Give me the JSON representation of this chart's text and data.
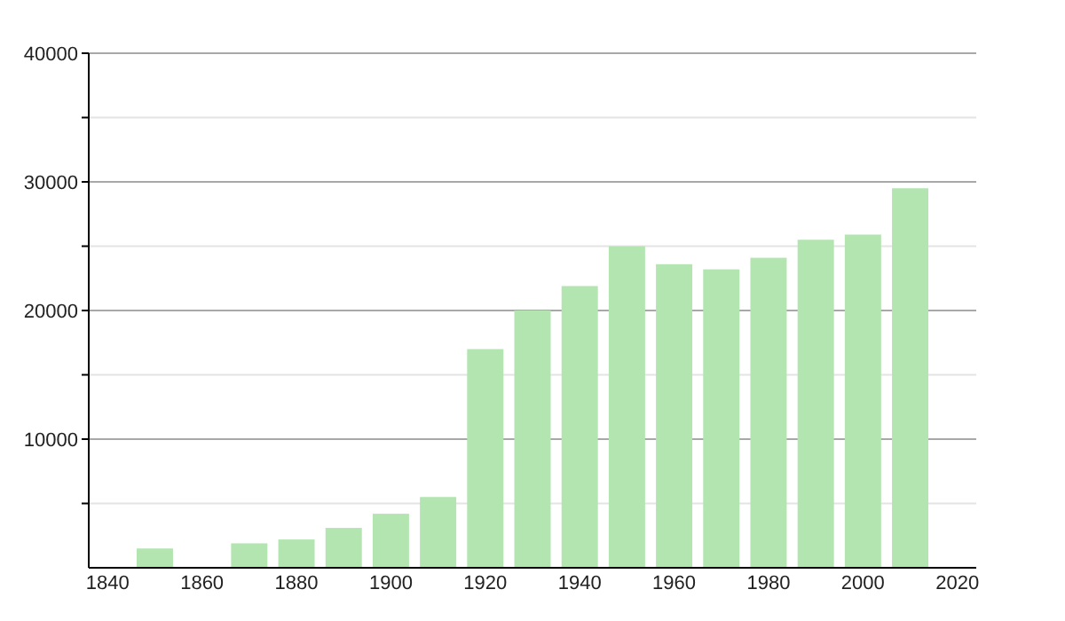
{
  "chart_data": {
    "type": "bar",
    "x": [
      1850,
      1870,
      1880,
      1890,
      1900,
      1910,
      1920,
      1930,
      1940,
      1950,
      1960,
      1970,
      1980,
      1990,
      2000,
      2010
    ],
    "values": [
      1500,
      1900,
      2200,
      3100,
      4200,
      5500,
      17000,
      20000,
      21900,
      25000,
      23600,
      23200,
      24100,
      25500,
      25900,
      29500
    ],
    "color": "#b3e5b1",
    "xlim": [
      1836,
      2024
    ],
    "xticks": [
      1840,
      1860,
      1880,
      1900,
      1920,
      1940,
      1960,
      1980,
      2000,
      2020
    ],
    "ylim": [
      0,
      40000
    ],
    "yticks": [
      {
        "value": 5000,
        "label": null
      },
      10000,
      {
        "value": 15000,
        "label": null
      },
      20000,
      {
        "value": 25000,
        "label": null
      },
      30000,
      {
        "value": 35000,
        "label": null
      },
      40000
    ],
    "grid": "y"
  }
}
